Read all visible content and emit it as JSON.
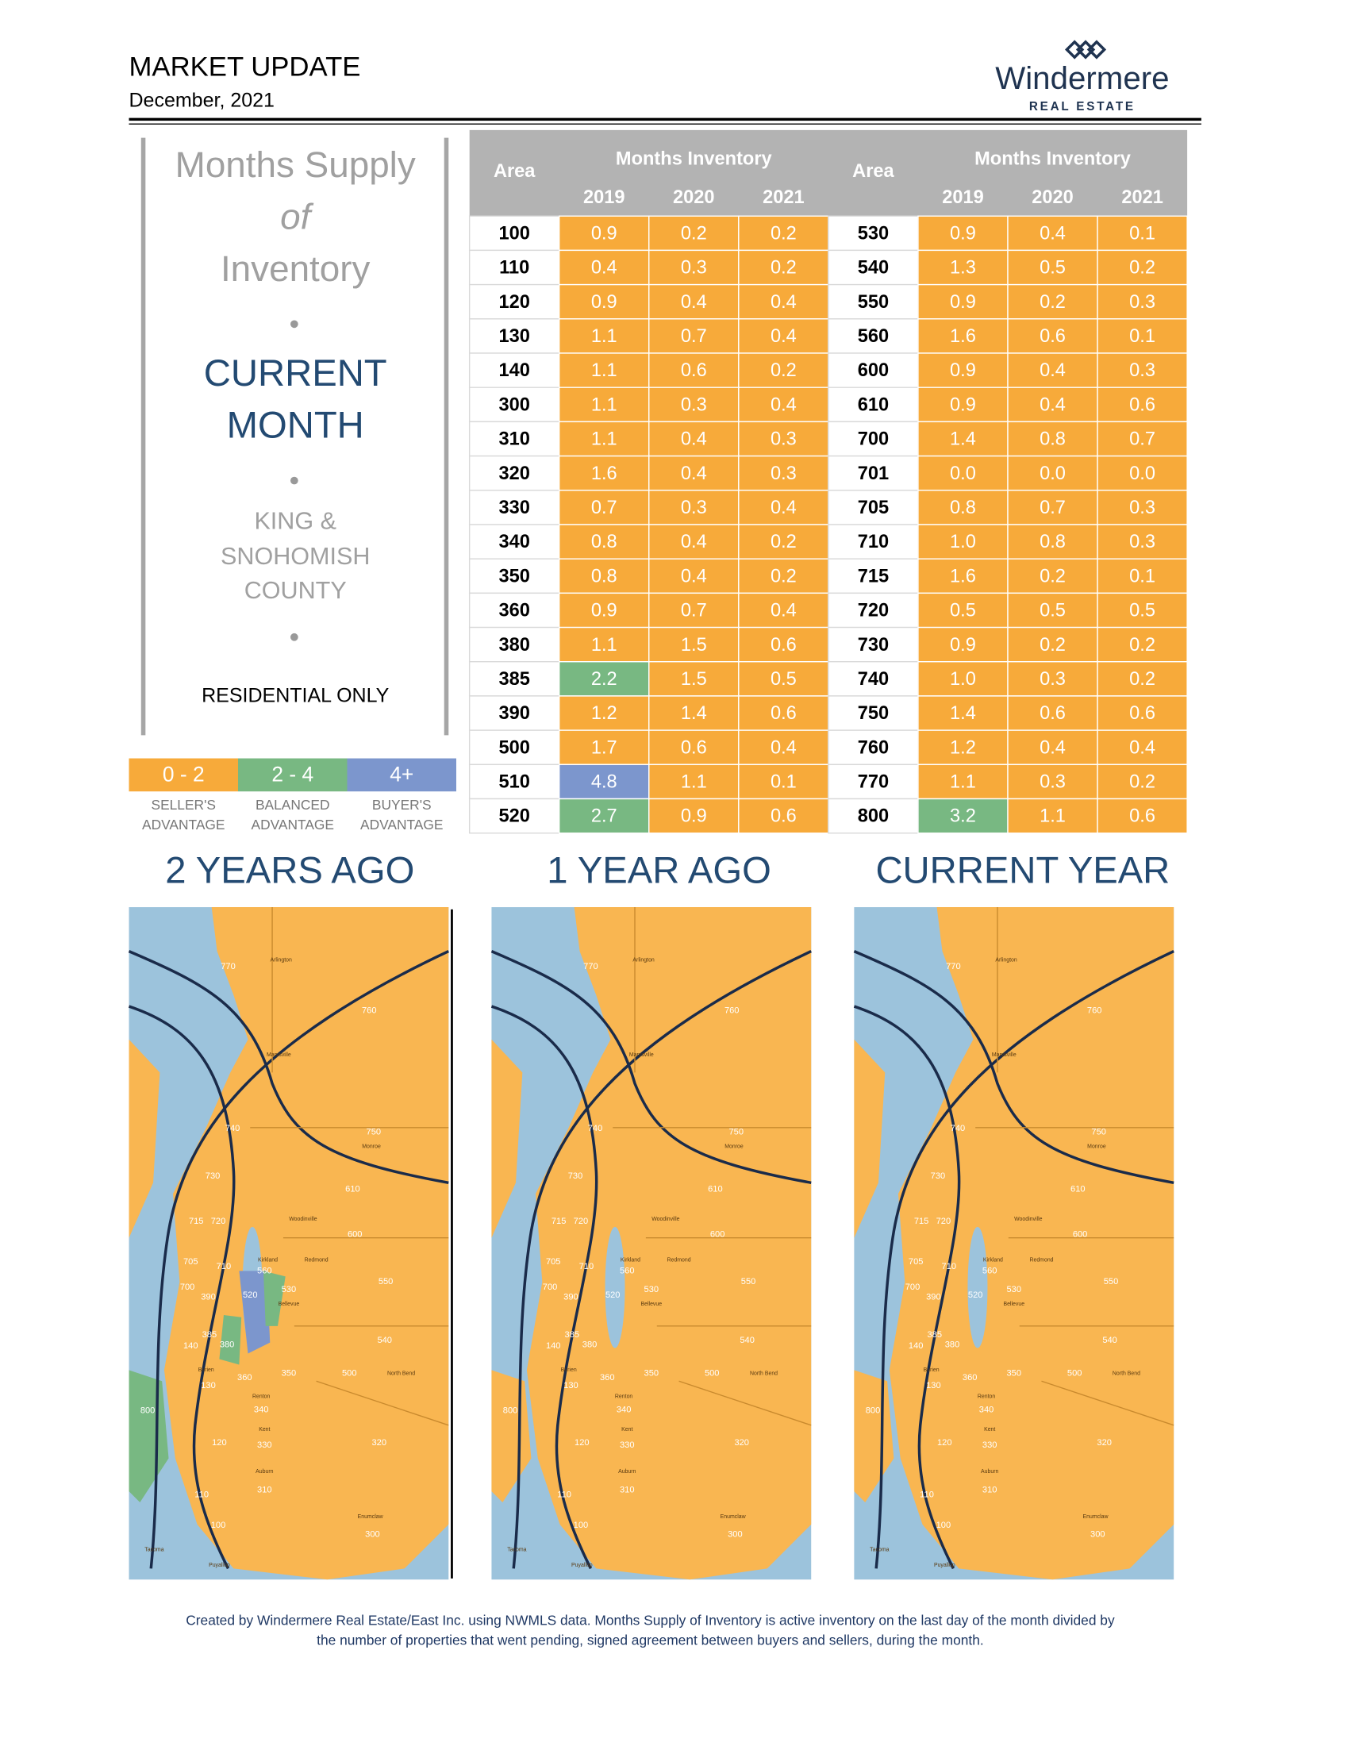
{
  "header": {
    "title": "MARKET UPDATE",
    "date": "December, 2021",
    "logo": {
      "name": "Windermere",
      "tagline": "REAL ESTATE"
    }
  },
  "sidebar": {
    "heading": [
      "Months Supply",
      "of",
      "Inventory"
    ],
    "period": [
      "CURRENT",
      "MONTH"
    ],
    "region": [
      "KING &",
      "SNOHOMISH",
      "COUNTY"
    ],
    "note": "RESIDENTIAL ONLY"
  },
  "table": {
    "area_header": "Area",
    "group_header": "Months Inventory",
    "years": [
      "2019",
      "2020",
      "2021"
    ],
    "rows": [
      [
        "100",
        "0.9",
        "0.2",
        "0.2",
        "530",
        "0.9",
        "0.4",
        "0.1"
      ],
      [
        "110",
        "0.4",
        "0.3",
        "0.2",
        "540",
        "1.3",
        "0.5",
        "0.2"
      ],
      [
        "120",
        "0.9",
        "0.4",
        "0.4",
        "550",
        "0.9",
        "0.2",
        "0.3"
      ],
      [
        "130",
        "1.1",
        "0.7",
        "0.4",
        "560",
        "1.6",
        "0.6",
        "0.1"
      ],
      [
        "140",
        "1.1",
        "0.6",
        "0.2",
        "600",
        "0.9",
        "0.4",
        "0.3"
      ],
      [
        "300",
        "1.1",
        "0.3",
        "0.4",
        "610",
        "0.9",
        "0.4",
        "0.6"
      ],
      [
        "310",
        "1.1",
        "0.4",
        "0.3",
        "700",
        "1.4",
        "0.8",
        "0.7"
      ],
      [
        "320",
        "1.6",
        "0.4",
        "0.3",
        "701",
        "0.0",
        "0.0",
        "0.0"
      ],
      [
        "330",
        "0.7",
        "0.3",
        "0.4",
        "705",
        "0.8",
        "0.7",
        "0.3"
      ],
      [
        "340",
        "0.8",
        "0.4",
        "0.2",
        "710",
        "1.0",
        "0.8",
        "0.3"
      ],
      [
        "350",
        "0.8",
        "0.4",
        "0.2",
        "715",
        "1.6",
        "0.2",
        "0.1"
      ],
      [
        "360",
        "0.9",
        "0.7",
        "0.4",
        "720",
        "0.5",
        "0.5",
        "0.5"
      ],
      [
        "380",
        "1.1",
        "1.5",
        "0.6",
        "730",
        "0.9",
        "0.2",
        "0.2"
      ],
      [
        "385",
        "2.2",
        "1.5",
        "0.5",
        "740",
        "1.0",
        "0.3",
        "0.2"
      ],
      [
        "390",
        "1.2",
        "1.4",
        "0.6",
        "750",
        "1.4",
        "0.6",
        "0.6"
      ],
      [
        "500",
        "1.7",
        "0.6",
        "0.4",
        "760",
        "1.2",
        "0.4",
        "0.4"
      ],
      [
        "510",
        "4.8",
        "1.1",
        "0.1",
        "770",
        "1.1",
        "0.3",
        "0.2"
      ],
      [
        "520",
        "2.7",
        "0.9",
        "0.6",
        "800",
        "3.2",
        "1.1",
        "0.6"
      ]
    ]
  },
  "legend": [
    {
      "label": "0 - 2",
      "color": "#f7aa3a",
      "caption": [
        "SELLER'S",
        "ADVANTAGE"
      ]
    },
    {
      "label": "2 - 4",
      "color": "#78b882",
      "caption": [
        "BALANCED",
        "ADVANTAGE"
      ]
    },
    {
      "label": "4+",
      "color": "#7c96cd",
      "caption": [
        "BUYER'S",
        "ADVANTAGE"
      ]
    }
  ],
  "maps": [
    {
      "title": "2 YEARS AGO"
    },
    {
      "title": "1 YEAR AGO"
    },
    {
      "title": "CURRENT YEAR"
    }
  ],
  "map_labels": [
    "770",
    "760",
    "740",
    "750",
    "730",
    "610",
    "600",
    "715",
    "720",
    "705",
    "710",
    "700",
    "560",
    "550",
    "530",
    "520",
    "390",
    "385",
    "380",
    "140",
    "540",
    "130",
    "360",
    "350",
    "500",
    "340",
    "800",
    "330",
    "320",
    "120",
    "310",
    "110",
    "100",
    "300",
    "Arlington",
    "Marysville",
    "Woodinville",
    "Redmond",
    "Kirkland",
    "Bellevue",
    "Renton",
    "Kent",
    "Auburn",
    "Tacoma",
    "Puyallup",
    "Enumclaw",
    "Monroe",
    "Burien",
    "North Bend"
  ],
  "footnote": [
    "Created by Windermere Real Estate/East Inc. using NWMLS data. Months Supply of Inventory is active inventory on the last day of the month divided by",
    "the number of properties that went pending, signed agreement between buyers and sellers, during the month."
  ]
}
